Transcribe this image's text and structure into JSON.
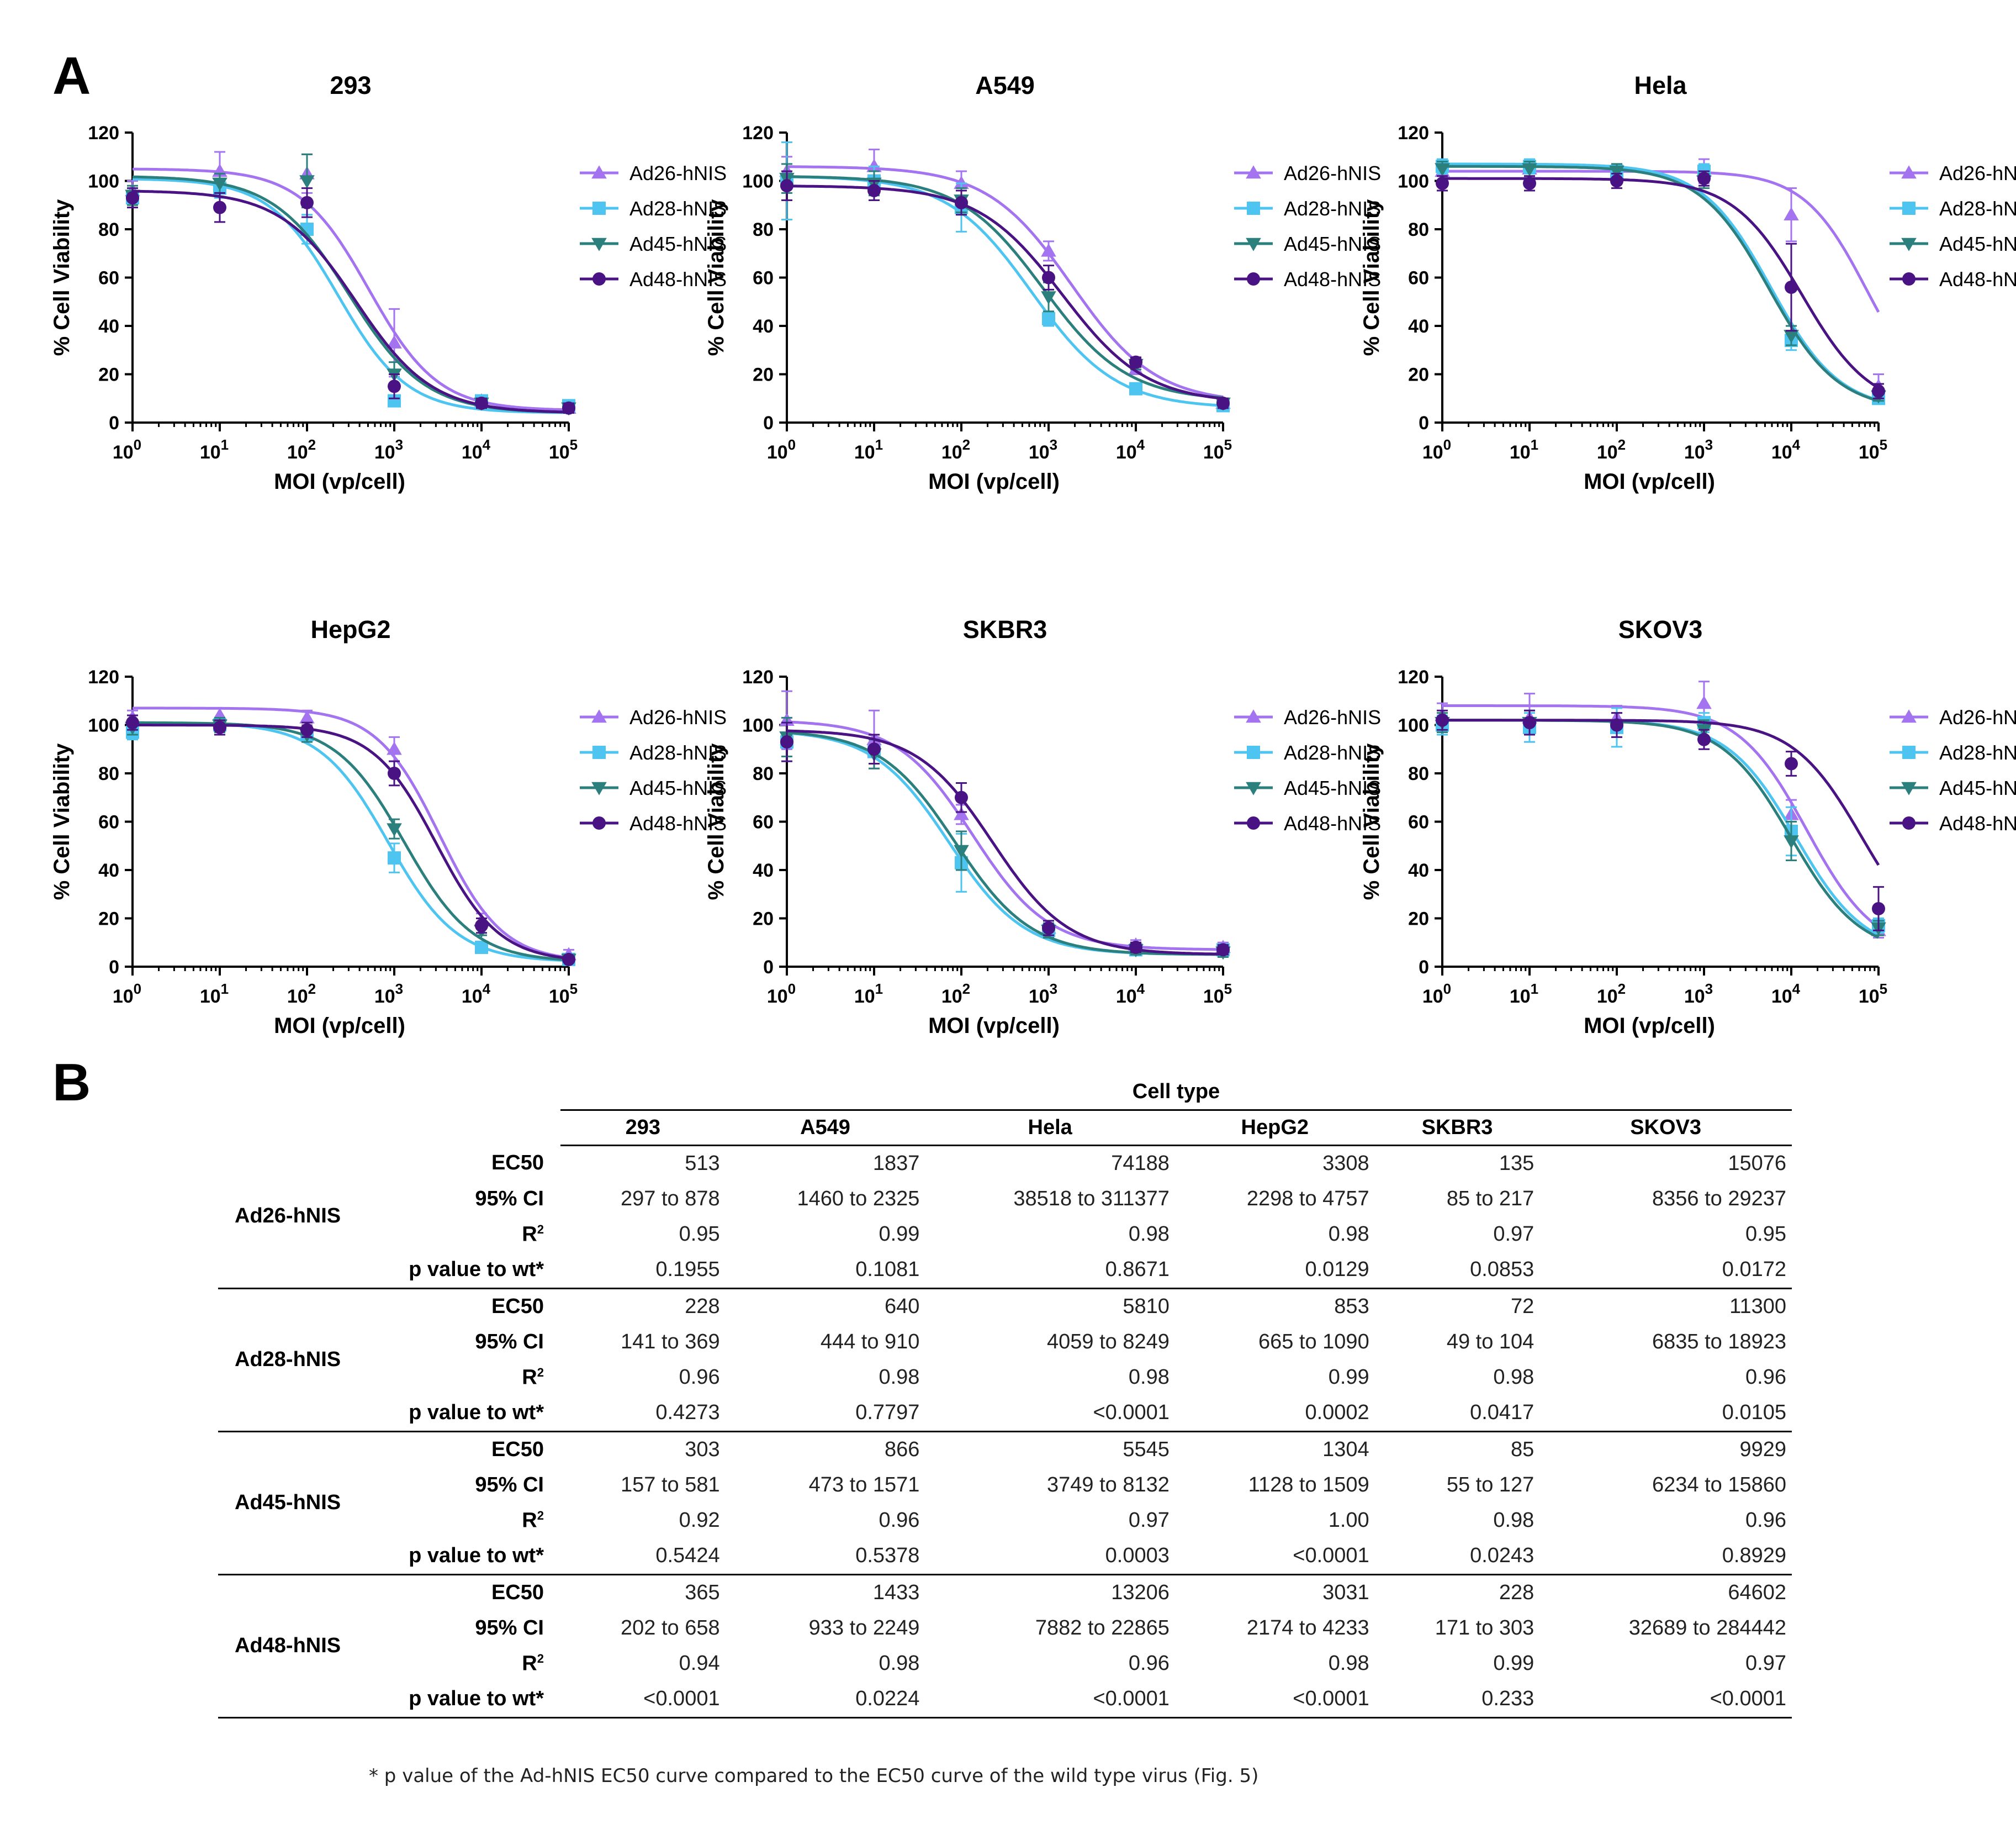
{
  "panel_labels": {
    "a": "A",
    "b": "B"
  },
  "colors": {
    "Ad26-hNIS": "#a473ef",
    "Ad28-hNIS": "#4ec5f1",
    "Ad45-hNIS": "#2b7f7c",
    "Ad48-hNIS": "#4a1383"
  },
  "legend": [
    {
      "name": "Ad26-hNIS",
      "marker": "triangle-up"
    },
    {
      "name": "Ad28-hNIS",
      "marker": "square"
    },
    {
      "name": "Ad45-hNIS",
      "marker": "triangle-down"
    },
    {
      "name": "Ad48-hNIS",
      "marker": "circle"
    }
  ],
  "chart_data": [
    {
      "type": "scatter",
      "title": "293",
      "xlabel": "MOI (vp/cell)",
      "ylabel": "% Cell Viability",
      "x_scale": "log10",
      "xlim": [
        1,
        100000
      ],
      "ylim": [
        0,
        120
      ],
      "x": [
        1,
        10,
        100,
        1000,
        10000,
        100000
      ],
      "x_tick_labels": [
        "10^0",
        "10^1",
        "10^2",
        "10^3",
        "10^4",
        "10^5"
      ],
      "y_ticks": [
        0,
        20,
        40,
        60,
        80,
        100,
        120
      ],
      "series": [
        {
          "name": "Ad26-hNIS",
          "values": [
            96,
            104,
            103,
            33,
            9,
            6
          ],
          "errors": [
            4,
            8,
            8,
            14,
            2,
            2
          ],
          "fit": {
            "top": 105,
            "bottom": 5,
            "ec50": 513,
            "hill": 1.1
          }
        },
        {
          "name": "Ad28-hNIS",
          "values": [
            93,
            97,
            80,
            9,
            9,
            7
          ],
          "errors": [
            4,
            4,
            6,
            2,
            2,
            2
          ],
          "fit": {
            "top": 101,
            "bottom": 4,
            "ec50": 228,
            "hill": 1.1
          }
        },
        {
          "name": "Ad45-hNIS",
          "values": [
            94,
            99,
            100,
            20,
            8,
            6
          ],
          "errors": [
            4,
            4,
            11,
            5,
            2,
            2
          ],
          "fit": {
            "top": 102,
            "bottom": 4,
            "ec50": 303,
            "hill": 1.0
          }
        },
        {
          "name": "Ad48-hNIS",
          "values": [
            93,
            89,
            91,
            15,
            8,
            6
          ],
          "errors": [
            4,
            6,
            6,
            5,
            2,
            2
          ],
          "fit": {
            "top": 96,
            "bottom": 4,
            "ec50": 365,
            "hill": 1.0
          }
        }
      ]
    },
    {
      "type": "scatter",
      "title": "A549",
      "xlabel": "MOI (vp/cell)",
      "ylabel": "% Cell Viability",
      "x_scale": "log10",
      "xlim": [
        1,
        100000
      ],
      "ylim": [
        0,
        120
      ],
      "x": [
        1,
        10,
        100,
        1000,
        10000,
        100000
      ],
      "x_tick_labels": [
        "10^0",
        "10^1",
        "10^2",
        "10^3",
        "10^4",
        "10^5"
      ],
      "y_ticks": [
        0,
        20,
        40,
        60,
        80,
        100,
        120
      ],
      "series": [
        {
          "name": "Ad26-hNIS",
          "values": [
            104,
            106,
            99,
            71,
            22,
            8
          ],
          "errors": [
            6,
            7,
            5,
            4,
            2,
            2
          ],
          "fit": {
            "top": 106,
            "bottom": 8,
            "ec50": 1837,
            "hill": 0.9
          }
        },
        {
          "name": "Ad28-hNIS",
          "values": [
            100,
            100,
            89,
            43,
            14,
            7
          ],
          "errors": [
            16,
            6,
            10,
            3,
            2,
            2
          ],
          "fit": {
            "top": 102,
            "bottom": 6,
            "ec50": 640,
            "hill": 0.9
          }
        },
        {
          "name": "Ad45-hNIS",
          "values": [
            101,
            99,
            92,
            52,
            24,
            8
          ],
          "errors": [
            6,
            5,
            5,
            6,
            2,
            2
          ],
          "fit": {
            "top": 102,
            "bottom": 9,
            "ec50": 866,
            "hill": 0.9
          }
        },
        {
          "name": "Ad48-hNIS",
          "values": [
            98,
            96,
            91,
            60,
            25,
            8
          ],
          "errors": [
            6,
            4,
            5,
            5,
            2,
            2
          ],
          "fit": {
            "top": 98,
            "bottom": 8,
            "ec50": 1433,
            "hill": 0.9
          }
        }
      ]
    },
    {
      "type": "scatter",
      "title": "Hela",
      "xlabel": "MOI (vp/cell)",
      "ylabel": "% Cell Viability",
      "x_scale": "log10",
      "xlim": [
        1,
        100000
      ],
      "ylim": [
        0,
        120
      ],
      "x": [
        1,
        10,
        100,
        1000,
        10000,
        100000
      ],
      "x_tick_labels": [
        "10^0",
        "10^1",
        "10^2",
        "10^3",
        "10^4",
        "10^5"
      ],
      "y_ticks": [
        0,
        20,
        40,
        60,
        80,
        100,
        120
      ],
      "series": [
        {
          "name": "Ad26-hNIS",
          "values": [
            104,
            105,
            103,
            104,
            86,
            15
          ],
          "errors": [
            4,
            3,
            3,
            5,
            11,
            5
          ],
          "fit": {
            "top": 104,
            "bottom": 5,
            "ec50": 74188,
            "hill": 1.2
          }
        },
        {
          "name": "Ad28-hNIS",
          "values": [
            106,
            106,
            104,
            104,
            34,
            10
          ],
          "errors": [
            3,
            3,
            3,
            3,
            4,
            2
          ],
          "fit": {
            "top": 107,
            "bottom": 5,
            "ec50": 5810,
            "hill": 1.1
          }
        },
        {
          "name": "Ad45-hNIS",
          "values": [
            105,
            105,
            104,
            100,
            36,
            11
          ],
          "errors": [
            3,
            3,
            3,
            3,
            4,
            2
          ],
          "fit": {
            "top": 106,
            "bottom": 5,
            "ec50": 5545,
            "hill": 1.1
          }
        },
        {
          "name": "Ad48-hNIS",
          "values": [
            99,
            99,
            100,
            101,
            56,
            13
          ],
          "errors": [
            3,
            3,
            3,
            3,
            18,
            3
          ],
          "fit": {
            "top": 101,
            "bottom": 5,
            "ec50": 13206,
            "hill": 1.1
          }
        }
      ]
    },
    {
      "type": "scatter",
      "title": "HepG2",
      "xlabel": "MOI (vp/cell)",
      "ylabel": "% Cell Viability",
      "x_scale": "log10",
      "xlim": [
        1,
        100000
      ],
      "ylim": [
        0,
        120
      ],
      "x": [
        1,
        10,
        100,
        1000,
        10000,
        100000
      ],
      "x_tick_labels": [
        "10^0",
        "10^1",
        "10^2",
        "10^3",
        "10^4",
        "10^5"
      ],
      "y_ticks": [
        0,
        20,
        40,
        60,
        80,
        100,
        120
      ],
      "series": [
        {
          "name": "Ad26-hNIS",
          "values": [
            103,
            104,
            103,
            90,
            19,
            5
          ],
          "errors": [
            3,
            3,
            3,
            5,
            3,
            2
          ],
          "fit": {
            "top": 107,
            "bottom": 2,
            "ec50": 3308,
            "hill": 1.2
          }
        },
        {
          "name": "Ad28-hNIS",
          "values": [
            97,
            100,
            96,
            45,
            8,
            3
          ],
          "errors": [
            3,
            3,
            3,
            6,
            2,
            1
          ],
          "fit": {
            "top": 101,
            "bottom": 2,
            "ec50": 853,
            "hill": 1.1
          }
        },
        {
          "name": "Ad45-hNIS",
          "values": [
            99,
            100,
            96,
            57,
            15,
            3
          ],
          "errors": [
            3,
            3,
            3,
            4,
            2,
            1
          ],
          "fit": {
            "top": 101,
            "bottom": 2,
            "ec50": 1304,
            "hill": 1.1
          }
        },
        {
          "name": "Ad48-hNIS",
          "values": [
            101,
            99,
            98,
            80,
            17,
            3
          ],
          "errors": [
            3,
            3,
            3,
            5,
            3,
            1
          ],
          "fit": {
            "top": 100,
            "bottom": 2,
            "ec50": 3031,
            "hill": 1.2
          }
        }
      ]
    },
    {
      "type": "scatter",
      "title": "SKBR3",
      "xlabel": "MOI (vp/cell)",
      "ylabel": "% Cell Viability",
      "x_scale": "log10",
      "xlim": [
        1,
        100000
      ],
      "ylim": [
        0,
        120
      ],
      "x": [
        1,
        10,
        100,
        1000,
        10000,
        100000
      ],
      "x_tick_labels": [
        "10^0",
        "10^1",
        "10^2",
        "10^3",
        "10^4",
        "10^5"
      ],
      "y_ticks": [
        0,
        20,
        40,
        60,
        80,
        100,
        120
      ],
      "series": [
        {
          "name": "Ad26-hNIS",
          "values": [
            102,
            94,
            63,
            16,
            9,
            8
          ],
          "errors": [
            12,
            12,
            4,
            3,
            2,
            2
          ],
          "fit": {
            "top": 102,
            "bottom": 7,
            "ec50": 135,
            "hill": 1.0
          }
        },
        {
          "name": "Ad28-hNIS",
          "values": [
            93,
            89,
            43,
            15,
            7,
            7
          ],
          "errors": [
            8,
            5,
            12,
            3,
            2,
            2
          ],
          "fit": {
            "top": 98,
            "bottom": 5,
            "ec50": 72,
            "hill": 1.0
          }
        },
        {
          "name": "Ad45-hNIS",
          "values": [
            95,
            88,
            48,
            15,
            7,
            6
          ],
          "errors": [
            8,
            6,
            8,
            3,
            2,
            2
          ],
          "fit": {
            "top": 98,
            "bottom": 5,
            "ec50": 85,
            "hill": 1.0
          }
        },
        {
          "name": "Ad48-hNIS",
          "values": [
            93,
            90,
            70,
            16,
            8,
            7
          ],
          "errors": [
            8,
            6,
            6,
            3,
            2,
            2
          ],
          "fit": {
            "top": 98,
            "bottom": 5,
            "ec50": 228,
            "hill": 1.0
          }
        }
      ]
    },
    {
      "type": "scatter",
      "title": "SKOV3",
      "xlabel": "MOI (vp/cell)",
      "ylabel": "% Cell Viability",
      "x_scale": "log10",
      "xlim": [
        1,
        100000
      ],
      "ylim": [
        0,
        120
      ],
      "x": [
        1,
        10,
        100,
        1000,
        10000,
        100000
      ],
      "x_tick_labels": [
        "10^0",
        "10^1",
        "10^2",
        "10^3",
        "10^4",
        "10^5"
      ],
      "y_ticks": [
        0,
        20,
        40,
        60,
        80,
        100,
        120
      ],
      "series": [
        {
          "name": "Ad26-hNIS",
          "values": [
            104,
            103,
            103,
            109,
            63,
            15
          ],
          "errors": [
            5,
            10,
            5,
            9,
            6,
            3
          ],
          "fit": {
            "top": 108,
            "bottom": 5,
            "ec50": 15076,
            "hill": 1.1
          }
        },
        {
          "name": "Ad28-hNIS",
          "values": [
            100,
            99,
            99,
            101,
            56,
            17
          ],
          "errors": [
            4,
            6,
            8,
            4,
            10,
            3
          ],
          "fit": {
            "top": 102,
            "bottom": 5,
            "ec50": 11300,
            "hill": 1.1
          }
        },
        {
          "name": "Ad45-hNIS",
          "values": [
            101,
            101,
            100,
            98,
            52,
            16
          ],
          "errors": [
            4,
            5,
            5,
            4,
            8,
            3
          ],
          "fit": {
            "top": 102,
            "bottom": 5,
            "ec50": 9929,
            "hill": 1.1
          }
        },
        {
          "name": "Ad48-hNIS",
          "values": [
            102,
            101,
            100,
            94,
            84,
            24
          ],
          "errors": [
            4,
            5,
            5,
            4,
            5,
            9
          ],
          "fit": {
            "top": 102,
            "bottom": 5,
            "ec50": 64602,
            "hill": 1.1
          }
        }
      ]
    }
  ],
  "table": {
    "span_header": "Cell type",
    "columns": [
      "293",
      "A549",
      "Hela",
      "HepG2",
      "SKBR3",
      "SKOV3"
    ],
    "metrics": [
      "EC50",
      "95% CI",
      "R",
      "p value to wt*"
    ],
    "r_squared_sup": "2",
    "groups": [
      {
        "vector": "Ad26-hNIS",
        "rows": [
          [
            "513",
            "1837",
            "74188",
            "3308",
            "135",
            "15076"
          ],
          [
            "297 to 878",
            "1460 to 2325",
            "38518 to 311377",
            "2298 to 4757",
            "85 to 217",
            "8356 to 29237"
          ],
          [
            "0.95",
            "0.99",
            "0.98",
            "0.98",
            "0.97",
            "0.95"
          ],
          [
            "0.1955",
            "0.1081",
            "0.8671",
            "0.0129",
            "0.0853",
            "0.0172"
          ]
        ]
      },
      {
        "vector": "Ad28-hNIS",
        "rows": [
          [
            "228",
            "640",
            "5810",
            "853",
            "72",
            "11300"
          ],
          [
            "141 to 369",
            "444 to 910",
            "4059 to 8249",
            "665 to 1090",
            "49 to 104",
            "6835 to 18923"
          ],
          [
            "0.96",
            "0.98",
            "0.98",
            "0.99",
            "0.98",
            "0.96"
          ],
          [
            "0.4273",
            "0.7797",
            "<0.0001",
            "0.0002",
            "0.0417",
            "0.0105"
          ]
        ]
      },
      {
        "vector": "Ad45-hNIS",
        "rows": [
          [
            "303",
            "866",
            "5545",
            "1304",
            "85",
            "9929"
          ],
          [
            "157 to 581",
            "473 to 1571",
            "3749 to 8132",
            "1128 to 1509",
            "55 to 127",
            "6234 to 15860"
          ],
          [
            "0.92",
            "0.96",
            "0.97",
            "1.00",
            "0.98",
            "0.96"
          ],
          [
            "0.5424",
            "0.5378",
            "0.0003",
            "<0.0001",
            "0.0243",
            "0.8929"
          ]
        ]
      },
      {
        "vector": "Ad48-hNIS",
        "rows": [
          [
            "365",
            "1433",
            "13206",
            "3031",
            "228",
            "64602"
          ],
          [
            "202 to 658",
            "933 to 2249",
            "7882 to 22865",
            "2174 to 4233",
            "171 to 303",
            "32689 to 284442"
          ],
          [
            "0.94",
            "0.98",
            "0.96",
            "0.98",
            "0.99",
            "0.97"
          ],
          [
            "<0.0001",
            "0.0224",
            "<0.0001",
            "<0.0001",
            "0.233",
            "<0.0001"
          ]
        ]
      }
    ]
  },
  "footnote": "* p value of the Ad-hNIS EC50 curve compared to the EC50 curve of the wild type virus (Fig. 5)"
}
